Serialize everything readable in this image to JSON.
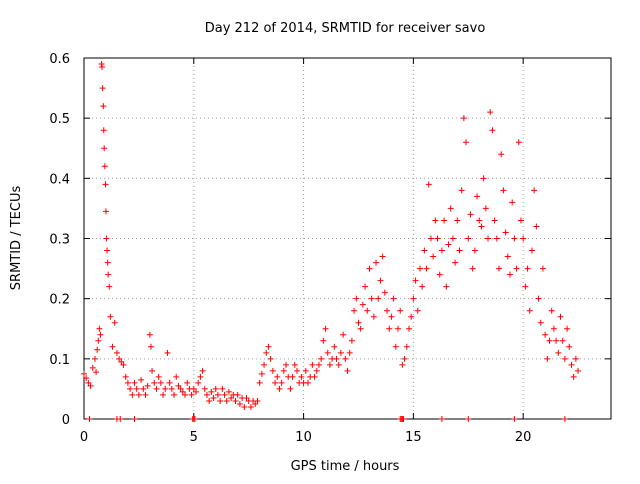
{
  "chart_data": {
    "type": "scatter",
    "title": "Day 212 of 2014, SRMTID for receiver savo",
    "xlabel": "GPS time / hours",
    "ylabel": "SRMTID / TECUs",
    "xlim": [
      0,
      24
    ],
    "ylim": [
      0,
      0.6
    ],
    "x_ticks": [
      0,
      5,
      10,
      15,
      20
    ],
    "x_tick_labels": [
      "0",
      "5",
      "10",
      "15",
      "20"
    ],
    "y_ticks": [
      0,
      0.1,
      0.2,
      0.3,
      0.4,
      0.5,
      0.6
    ],
    "y_tick_labels": [
      "0",
      "0.1",
      "0.2",
      "0.3",
      "0.4",
      "0.5",
      "0.6"
    ],
    "grid": true,
    "legend": "none",
    "marker": "+",
    "series_color": "#ff0000",
    "axis_color": "#000000",
    "grid_color": "#a0a0a0",
    "series": [
      {
        "name": "SRMTID",
        "points": [
          [
            0.0,
            0.075
          ],
          [
            0.1,
            0.068
          ],
          [
            0.2,
            0.06
          ],
          [
            0.3,
            0.055
          ],
          [
            0.4,
            0.085
          ],
          [
            0.5,
            0.1
          ],
          [
            0.55,
            0.078
          ],
          [
            0.6,
            0.115
          ],
          [
            0.65,
            0.13
          ],
          [
            0.7,
            0.15
          ],
          [
            0.75,
            0.14
          ],
          [
            0.8,
            0.59
          ],
          [
            0.82,
            0.585
          ],
          [
            0.85,
            0.55
          ],
          [
            0.88,
            0.52
          ],
          [
            0.9,
            0.48
          ],
          [
            0.92,
            0.45
          ],
          [
            0.95,
            0.42
          ],
          [
            0.98,
            0.39
          ],
          [
            1.0,
            0.345
          ],
          [
            1.02,
            0.3
          ],
          [
            1.05,
            0.28
          ],
          [
            1.08,
            0.26
          ],
          [
            1.1,
            0.24
          ],
          [
            1.15,
            0.22
          ],
          [
            1.2,
            0.17
          ],
          [
            1.3,
            0.12
          ],
          [
            1.4,
            0.16
          ],
          [
            1.5,
            0.11
          ],
          [
            1.6,
            0.1
          ],
          [
            1.7,
            0.095
          ],
          [
            1.8,
            0.09
          ],
          [
            1.9,
            0.07
          ],
          [
            2.0,
            0.06
          ],
          [
            2.1,
            0.05
          ],
          [
            2.2,
            0.04
          ],
          [
            2.3,
            0.06
          ],
          [
            2.4,
            0.05
          ],
          [
            2.5,
            0.04
          ],
          [
            2.6,
            0.065
          ],
          [
            2.7,
            0.05
          ],
          [
            2.8,
            0.04
          ],
          [
            2.9,
            0.055
          ],
          [
            3.0,
            0.14
          ],
          [
            3.05,
            0.12
          ],
          [
            3.1,
            0.08
          ],
          [
            3.2,
            0.06
          ],
          [
            3.3,
            0.05
          ],
          [
            3.4,
            0.07
          ],
          [
            3.5,
            0.06
          ],
          [
            3.6,
            0.04
          ],
          [
            3.7,
            0.05
          ],
          [
            3.8,
            0.11
          ],
          [
            3.9,
            0.06
          ],
          [
            4.0,
            0.05
          ],
          [
            4.1,
            0.04
          ],
          [
            4.2,
            0.07
          ],
          [
            4.3,
            0.055
          ],
          [
            4.4,
            0.05
          ],
          [
            4.5,
            0.045
          ],
          [
            4.6,
            0.04
          ],
          [
            4.7,
            0.06
          ],
          [
            4.8,
            0.05
          ],
          [
            4.9,
            0.04
          ],
          [
            5.0,
            0.05
          ],
          [
            5.1,
            0.045
          ],
          [
            5.2,
            0.06
          ],
          [
            5.3,
            0.07
          ],
          [
            5.4,
            0.08
          ],
          [
            5.5,
            0.05
          ],
          [
            5.6,
            0.04
          ],
          [
            5.7,
            0.03
          ],
          [
            5.8,
            0.045
          ],
          [
            5.9,
            0.035
          ],
          [
            6.0,
            0.05
          ],
          [
            6.1,
            0.04
          ],
          [
            6.2,
            0.03
          ],
          [
            6.3,
            0.05
          ],
          [
            6.4,
            0.04
          ],
          [
            6.5,
            0.03
          ],
          [
            6.6,
            0.045
          ],
          [
            6.7,
            0.035
          ],
          [
            6.8,
            0.04
          ],
          [
            6.9,
            0.03
          ],
          [
            7.0,
            0.04
          ],
          [
            7.1,
            0.025
          ],
          [
            7.2,
            0.035
          ],
          [
            7.3,
            0.02
          ],
          [
            7.4,
            0.035
          ],
          [
            7.5,
            0.03
          ],
          [
            7.6,
            0.02
          ],
          [
            7.7,
            0.03
          ],
          [
            7.8,
            0.025
          ],
          [
            7.9,
            0.03
          ],
          [
            8.0,
            0.06
          ],
          [
            8.1,
            0.075
          ],
          [
            8.2,
            0.09
          ],
          [
            8.3,
            0.11
          ],
          [
            8.4,
            0.12
          ],
          [
            8.5,
            0.1
          ],
          [
            8.6,
            0.08
          ],
          [
            8.7,
            0.06
          ],
          [
            8.8,
            0.07
          ],
          [
            8.9,
            0.05
          ],
          [
            9.0,
            0.06
          ],
          [
            9.1,
            0.08
          ],
          [
            9.2,
            0.09
          ],
          [
            9.3,
            0.07
          ],
          [
            9.4,
            0.05
          ],
          [
            9.5,
            0.07
          ],
          [
            9.6,
            0.09
          ],
          [
            9.7,
            0.08
          ],
          [
            9.8,
            0.06
          ],
          [
            9.9,
            0.07
          ],
          [
            10.0,
            0.06
          ],
          [
            10.1,
            0.08
          ],
          [
            10.2,
            0.06
          ],
          [
            10.3,
            0.07
          ],
          [
            10.4,
            0.09
          ],
          [
            10.5,
            0.07
          ],
          [
            10.6,
            0.08
          ],
          [
            10.7,
            0.09
          ],
          [
            10.8,
            0.1
          ],
          [
            10.9,
            0.13
          ],
          [
            11.0,
            0.15
          ],
          [
            11.1,
            0.11
          ],
          [
            11.2,
            0.09
          ],
          [
            11.3,
            0.1
          ],
          [
            11.4,
            0.12
          ],
          [
            11.5,
            0.1
          ],
          [
            11.6,
            0.09
          ],
          [
            11.7,
            0.11
          ],
          [
            11.8,
            0.14
          ],
          [
            11.9,
            0.1
          ],
          [
            12.0,
            0.08
          ],
          [
            12.1,
            0.11
          ],
          [
            12.2,
            0.13
          ],
          [
            12.3,
            0.18
          ],
          [
            12.4,
            0.2
          ],
          [
            12.5,
            0.16
          ],
          [
            12.6,
            0.15
          ],
          [
            12.7,
            0.19
          ],
          [
            12.8,
            0.22
          ],
          [
            12.9,
            0.18
          ],
          [
            13.0,
            0.25
          ],
          [
            13.1,
            0.2
          ],
          [
            13.2,
            0.17
          ],
          [
            13.3,
            0.26
          ],
          [
            13.4,
            0.2
          ],
          [
            13.5,
            0.23
          ],
          [
            13.6,
            0.27
          ],
          [
            13.7,
            0.21
          ],
          [
            13.8,
            0.18
          ],
          [
            13.9,
            0.15
          ],
          [
            14.0,
            0.17
          ],
          [
            14.1,
            0.2
          ],
          [
            14.2,
            0.12
          ],
          [
            14.3,
            0.15
          ],
          [
            14.4,
            0.18
          ],
          [
            14.5,
            0.09
          ],
          [
            14.6,
            0.1
          ],
          [
            14.7,
            0.12
          ],
          [
            14.8,
            0.15
          ],
          [
            14.9,
            0.17
          ],
          [
            15.0,
            0.2
          ],
          [
            15.1,
            0.23
          ],
          [
            15.2,
            0.18
          ],
          [
            15.3,
            0.25
          ],
          [
            15.4,
            0.22
          ],
          [
            15.5,
            0.28
          ],
          [
            15.6,
            0.25
          ],
          [
            15.7,
            0.39
          ],
          [
            15.8,
            0.3
          ],
          [
            15.9,
            0.27
          ],
          [
            16.0,
            0.33
          ],
          [
            16.1,
            0.3
          ],
          [
            16.2,
            0.24
          ],
          [
            16.3,
            0.28
          ],
          [
            16.4,
            0.33
          ],
          [
            16.5,
            0.22
          ],
          [
            16.6,
            0.29
          ],
          [
            16.7,
            0.35
          ],
          [
            16.8,
            0.3
          ],
          [
            16.9,
            0.26
          ],
          [
            17.0,
            0.33
          ],
          [
            17.1,
            0.28
          ],
          [
            17.2,
            0.38
          ],
          [
            17.3,
            0.5
          ],
          [
            17.4,
            0.46
          ],
          [
            17.5,
            0.3
          ],
          [
            17.6,
            0.34
          ],
          [
            17.7,
            0.25
          ],
          [
            17.8,
            0.28
          ],
          [
            17.9,
            0.37
          ],
          [
            18.0,
            0.33
          ],
          [
            18.1,
            0.32
          ],
          [
            18.2,
            0.4
          ],
          [
            18.3,
            0.35
          ],
          [
            18.4,
            0.3
          ],
          [
            18.5,
            0.51
          ],
          [
            18.6,
            0.48
          ],
          [
            18.7,
            0.33
          ],
          [
            18.8,
            0.3
          ],
          [
            18.9,
            0.25
          ],
          [
            19.0,
            0.44
          ],
          [
            19.1,
            0.38
          ],
          [
            19.2,
            0.31
          ],
          [
            19.3,
            0.27
          ],
          [
            19.4,
            0.24
          ],
          [
            19.5,
            0.36
          ],
          [
            19.6,
            0.3
          ],
          [
            19.7,
            0.25
          ],
          [
            19.8,
            0.46
          ],
          [
            19.9,
            0.33
          ],
          [
            20.0,
            0.3
          ],
          [
            20.1,
            0.22
          ],
          [
            20.2,
            0.25
          ],
          [
            20.3,
            0.18
          ],
          [
            20.4,
            0.28
          ],
          [
            20.5,
            0.38
          ],
          [
            20.6,
            0.32
          ],
          [
            20.7,
            0.2
          ],
          [
            20.8,
            0.16
          ],
          [
            20.9,
            0.25
          ],
          [
            21.0,
            0.14
          ],
          [
            21.1,
            0.1
          ],
          [
            21.2,
            0.13
          ],
          [
            21.3,
            0.18
          ],
          [
            21.4,
            0.15
          ],
          [
            21.5,
            0.13
          ],
          [
            21.6,
            0.11
          ],
          [
            21.7,
            0.17
          ],
          [
            21.8,
            0.13
          ],
          [
            21.9,
            0.1
          ],
          [
            22.0,
            0.15
          ],
          [
            22.1,
            0.12
          ],
          [
            22.2,
            0.09
          ],
          [
            22.3,
            0.07
          ],
          [
            22.4,
            0.1
          ],
          [
            22.5,
            0.08
          ],
          [
            0.25,
            0.0
          ],
          [
            1.5,
            0.0
          ],
          [
            1.65,
            0.0
          ],
          [
            2.3,
            0.0
          ],
          [
            4.95,
            0.0
          ],
          [
            5.0,
            0.0
          ],
          [
            5.05,
            0.0
          ],
          [
            14.4,
            0.0
          ],
          [
            14.45,
            0.0
          ],
          [
            14.5,
            0.0
          ],
          [
            14.55,
            0.0
          ],
          [
            16.3,
            0.0
          ],
          [
            17.5,
            0.0
          ],
          [
            19.6,
            0.0
          ],
          [
            21.9,
            0.0
          ]
        ]
      }
    ]
  }
}
